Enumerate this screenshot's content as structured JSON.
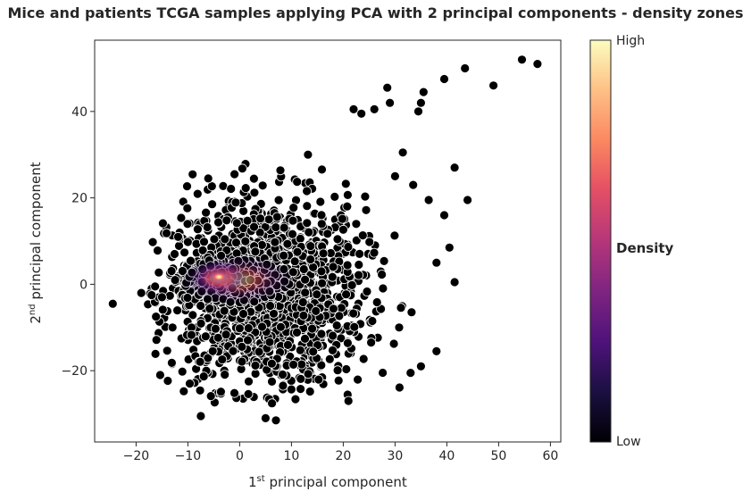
{
  "chart_data": {
    "type": "scatter",
    "title": "Mice and patients TCGA samples applying PCA with 2 principal components - density zones",
    "xlabel_main": "principal component",
    "xlabel_ordinal": "1",
    "xlabel_sup": "st",
    "ylabel_main": "principal component",
    "ylabel_ordinal": "2",
    "ylabel_sup": "nd",
    "xlim": [
      -28,
      62
    ],
    "ylim": [
      -36.5,
      56.5
    ],
    "xticks": [
      "−20",
      "−10",
      "0",
      "10",
      "20",
      "30",
      "40",
      "50",
      "60"
    ],
    "xtick_values": [
      -20,
      -10,
      0,
      10,
      20,
      30,
      40,
      50,
      60
    ],
    "yticks": [
      "−20",
      "0",
      "20",
      "40"
    ],
    "ytick_values": [
      -20,
      0,
      20,
      40
    ],
    "grid": false,
    "point_color": "#000000",
    "point_edge_color": "#ffffff",
    "colormap": "magma",
    "colorbar": {
      "title": "Density",
      "high_label": "High",
      "low_label": "Low"
    },
    "cloud_center": [
      5,
      -2
    ],
    "density_peak": [
      -4,
      1.5
    ],
    "outliers": [
      [
        -24.5,
        -4.5
      ],
      [
        -19,
        -2
      ],
      [
        -17,
        -2.5
      ],
      [
        -15,
        -3
      ],
      [
        -7.5,
        -30.5
      ],
      [
        5,
        -31
      ],
      [
        7,
        -31.5
      ],
      [
        21,
        -27
      ],
      [
        22,
        40.5
      ],
      [
        23.5,
        39.5
      ],
      [
        26,
        40.5
      ],
      [
        28.5,
        45.5
      ],
      [
        29,
        42
      ],
      [
        34.5,
        40
      ],
      [
        35,
        42
      ],
      [
        35.5,
        44.5
      ],
      [
        39.5,
        47.5
      ],
      [
        43.5,
        50
      ],
      [
        49,
        46
      ],
      [
        54.5,
        52
      ],
      [
        57.5,
        51
      ],
      [
        44,
        19.5
      ],
      [
        41.5,
        27
      ],
      [
        41.5,
        0.5
      ],
      [
        39.5,
        16
      ],
      [
        38,
        -15.5
      ],
      [
        40.5,
        8.5
      ],
      [
        33,
        -20.5
      ],
      [
        35,
        -19
      ],
      [
        33.5,
        23
      ],
      [
        36.5,
        19.5
      ],
      [
        38,
        5
      ],
      [
        31.5,
        30.5
      ],
      [
        30,
        25
      ]
    ]
  }
}
